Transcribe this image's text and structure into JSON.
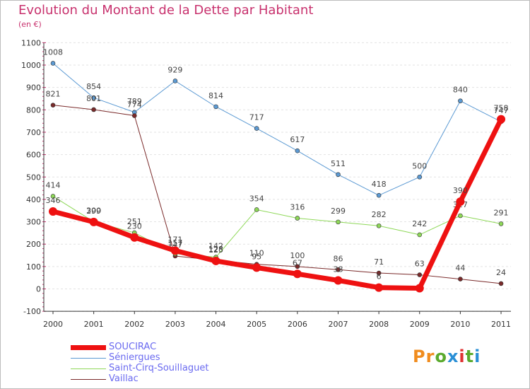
{
  "title": "Evolution du Montant de la Dette par Habitant",
  "subtitle": "(en €)",
  "logo": {
    "text": "Proxiti",
    "letter_colors": [
      "#f08c1e",
      "#f08c1e",
      "#5aaa2d",
      "#2a8fd6",
      "#e03232",
      "#5aaa2d",
      "#2a8fd6"
    ]
  },
  "chart_data": {
    "type": "line",
    "title": "Evolution du Montant de la Dette par Habitant",
    "ylabel": "(en €)",
    "x": [
      "2000",
      "2001",
      "2002",
      "2003",
      "2004",
      "2005",
      "2006",
      "2007",
      "2008",
      "2009",
      "2010",
      "2011"
    ],
    "ylim": [
      -100,
      1100
    ],
    "yticks": [
      "-100",
      "0",
      "100",
      "200",
      "300",
      "400",
      "500",
      "600",
      "700",
      "800",
      "900",
      "1000",
      "1100"
    ],
    "grid": "horizontal dashed",
    "legend_position": "bottom-left",
    "series": [
      {
        "name": "Séniergues",
        "color": "#5c9ad3",
        "line_width": 1,
        "values": [
          1008,
          854,
          789,
          929,
          814,
          717,
          617,
          511,
          418,
          500,
          840,
          747
        ],
        "labels": [
          "1008",
          "854",
          "789",
          "929",
          "814",
          "717",
          "617",
          "511",
          "418",
          "500",
          "840",
          "747"
        ]
      },
      {
        "name": "Vaillac",
        "color": "#7a2a2a",
        "line_width": 1,
        "values": [
          821,
          801,
          774,
          147,
          128,
          110,
          100,
          86,
          71,
          63,
          44,
          24
        ],
        "labels": [
          "821",
          "801",
          "774",
          "147",
          "128",
          "110",
          "100",
          "86",
          "71",
          "63",
          "44",
          "24"
        ]
      },
      {
        "name": "Saint-Cirq-Souillaguet",
        "color": "#8ed858",
        "line_width": 1,
        "values": [
          414,
          300,
          251,
          157,
          142,
          354,
          316,
          299,
          282,
          242,
          327,
          291
        ],
        "labels": [
          "414",
          "300",
          "251",
          "157",
          "142",
          "354",
          "316",
          "299",
          "282",
          "242",
          "327",
          "291"
        ]
      },
      {
        "name": "SOUCIRAC",
        "color": "#ee1111",
        "line_width": 7,
        "values": [
          346,
          299,
          230,
          171,
          125,
          95,
          67,
          38,
          6,
          3,
          390,
          758
        ],
        "labels": [
          "346",
          "299",
          "230",
          "171",
          "125",
          "95",
          "67",
          "38",
          "6",
          "",
          "390",
          "758"
        ]
      }
    ],
    "legend": [
      {
        "name": "SOUCIRAC",
        "color": "#ee1111",
        "line_width": 7
      },
      {
        "name": "Séniergues",
        "color": "#5c9ad3",
        "line_width": 1
      },
      {
        "name": "Saint-Cirq-Souillaguet",
        "color": "#8ed858",
        "line_width": 1
      },
      {
        "name": "Vaillac",
        "color": "#7a2a2a",
        "line_width": 1
      }
    ]
  }
}
